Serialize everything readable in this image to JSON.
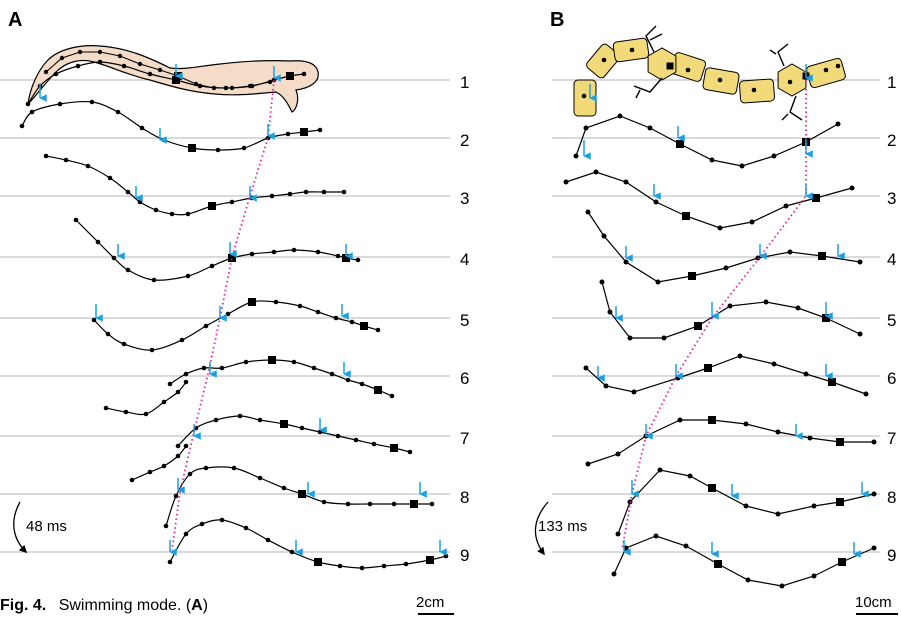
{
  "figure": {
    "panel_a_label": "A",
    "panel_b_label": "B",
    "row_labels": [
      "1",
      "2",
      "3",
      "4",
      "5",
      "6",
      "7",
      "8",
      "9"
    ],
    "panel_a_time": "48 ms",
    "panel_b_time": "133 ms",
    "panel_a_scale": "2cm",
    "panel_b_scale": "10cm",
    "caption_fig": "Fig. 4.",
    "caption_text": "Swimming mode. (",
    "caption_panel": "A",
    "caption_end": ")",
    "colors": {
      "phase_line": "#e0209a",
      "arrow": "#1aa0e0",
      "salamander_body": "#f4dcc8",
      "robot_body": "#f2d97a"
    }
  }
}
